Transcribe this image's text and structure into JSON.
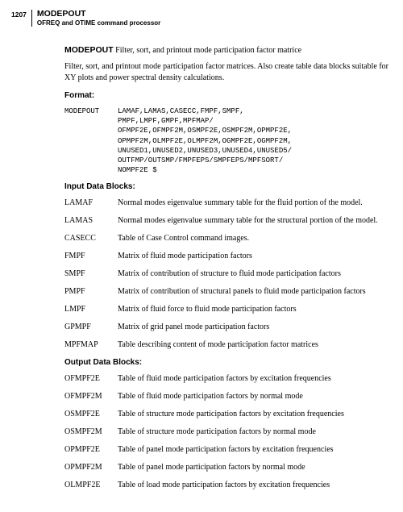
{
  "page_number": "1207",
  "header": {
    "title": "MODEPOUT",
    "subtitle": "OFREQ and OTIME command processor"
  },
  "lead": {
    "name": "MODEPOUT",
    "short": "Filter, sort, and printout mode participation factor matrice"
  },
  "intro": "Filter, sort, and printout mode participation factor matrices. Also create table data blocks suitable for XY plots and power spectral density calculations.",
  "format_title": "Format:",
  "code": {
    "left": "MODEPOUT",
    "lines": [
      "LAMAF,LAMAS,CASECC,FMPF,SMPF,",
      "PMPF,LMPF,GMPF,MPFMAP/",
      "OFMPF2E,OFMPF2M,OSMPF2E,OSMPF2M,OPMPF2E,",
      "OPMPF2M,OLMPF2E,OLMPF2M,OGMPF2E,OGMPF2M,",
      "UNUSED1,UNUSED2,UNUSED3,UNUSED4,UNUSED5/",
      "OUTFMP/OUTSMP/FMPFEPS/SMPFEPS/MPFSORT/",
      "NOMPF2E $"
    ]
  },
  "input_title": "Input Data Blocks:",
  "input_rows": [
    {
      "term": "LAMAF",
      "def": "Normal modes eigenvalue summary table for the fluid portion of the model."
    },
    {
      "term": "LAMAS",
      "def": "Normal modes eigenvalue summary table for the structural portion of the model."
    },
    {
      "term": "CASECC",
      "def": "Table of Case Control command images."
    },
    {
      "term": "FMPF",
      "def": "Matrix of fluid mode participation factors"
    },
    {
      "term": "SMPF",
      "def": "Matrix of contribution of structure to fluid mode participation factors"
    },
    {
      "term": "PMPF",
      "def": "Matrix of contribution of structural panels to fluid mode participation factors"
    },
    {
      "term": "LMPF",
      "def": "Matrix of fluid force to fluid mode participation factors"
    },
    {
      "term": "GPMPF",
      "def": "Matrix of grid panel mode participation factors"
    },
    {
      "term": "MPFMAP",
      "def": "Table describing content of mode participation factor matrices"
    }
  ],
  "output_title": "Output Data Blocks:",
  "output_rows": [
    {
      "term": "OFMPF2E",
      "def": "Table of fluid mode participation factors by excitation frequencies"
    },
    {
      "term": "OFMPF2M",
      "def": "Table of fluid mode participation factors by normal mode"
    },
    {
      "term": "OSMPF2E",
      "def": "Table of structure mode participation factors by excitation frequencies"
    },
    {
      "term": "OSMPF2M",
      "def": "Table of structure mode participation factors by normal mode"
    },
    {
      "term": "OPMPF2E",
      "def": "Table of panel mode participation factors by excitation frequencies"
    },
    {
      "term": "OPMPF2M",
      "def": "Table of panel mode participation factors by normal mode"
    },
    {
      "term": "OLMPF2E",
      "def": "Table of load mode participation factors by excitation frequencies"
    }
  ]
}
